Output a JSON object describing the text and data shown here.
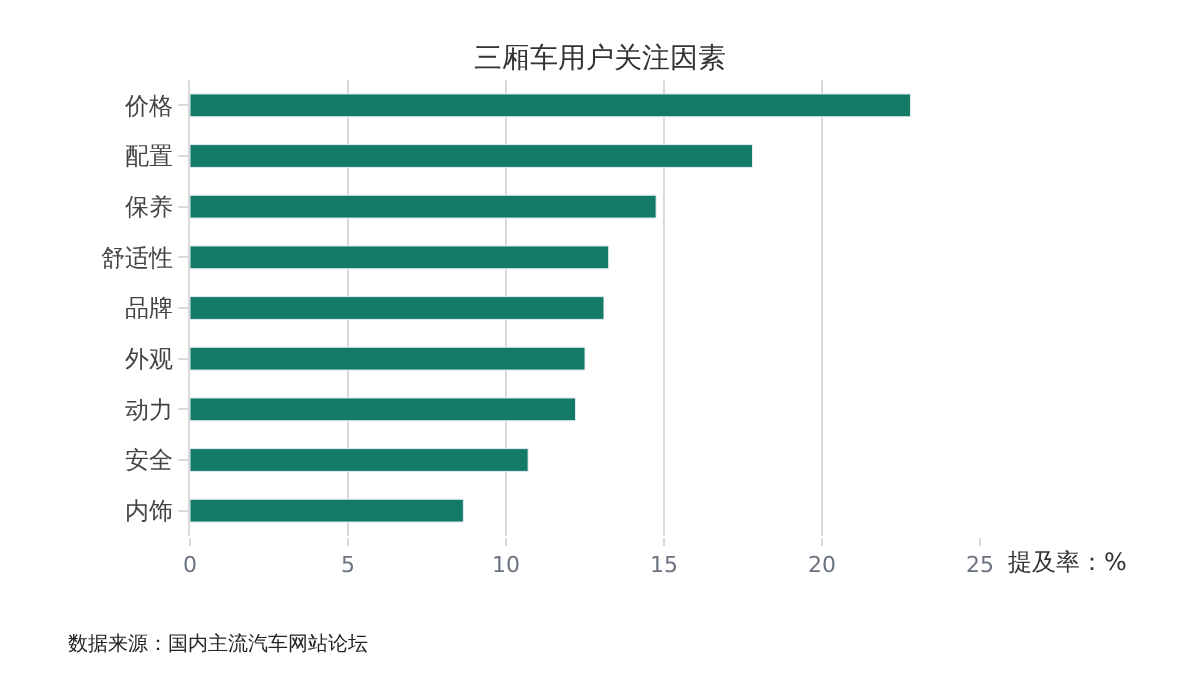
{
  "chart_data": {
    "type": "bar",
    "orientation": "horizontal",
    "title": "三厢车用户关注因素",
    "xlabel": "提及率：%",
    "categories": [
      "价格",
      "配置",
      "保养",
      "舒适性",
      "品牌",
      "外观",
      "动力",
      "安全",
      "内饰"
    ],
    "values": [
      22.8,
      17.8,
      14.75,
      13.25,
      13.1,
      12.5,
      12.2,
      10.7,
      8.65
    ],
    "color": "#137a66",
    "xlim": [
      0,
      25
    ],
    "xticks": [
      0,
      5,
      10,
      15,
      20,
      25
    ],
    "grid": "x",
    "annotations": [
      "数据来源：国内主流汽车网站论坛"
    ]
  }
}
